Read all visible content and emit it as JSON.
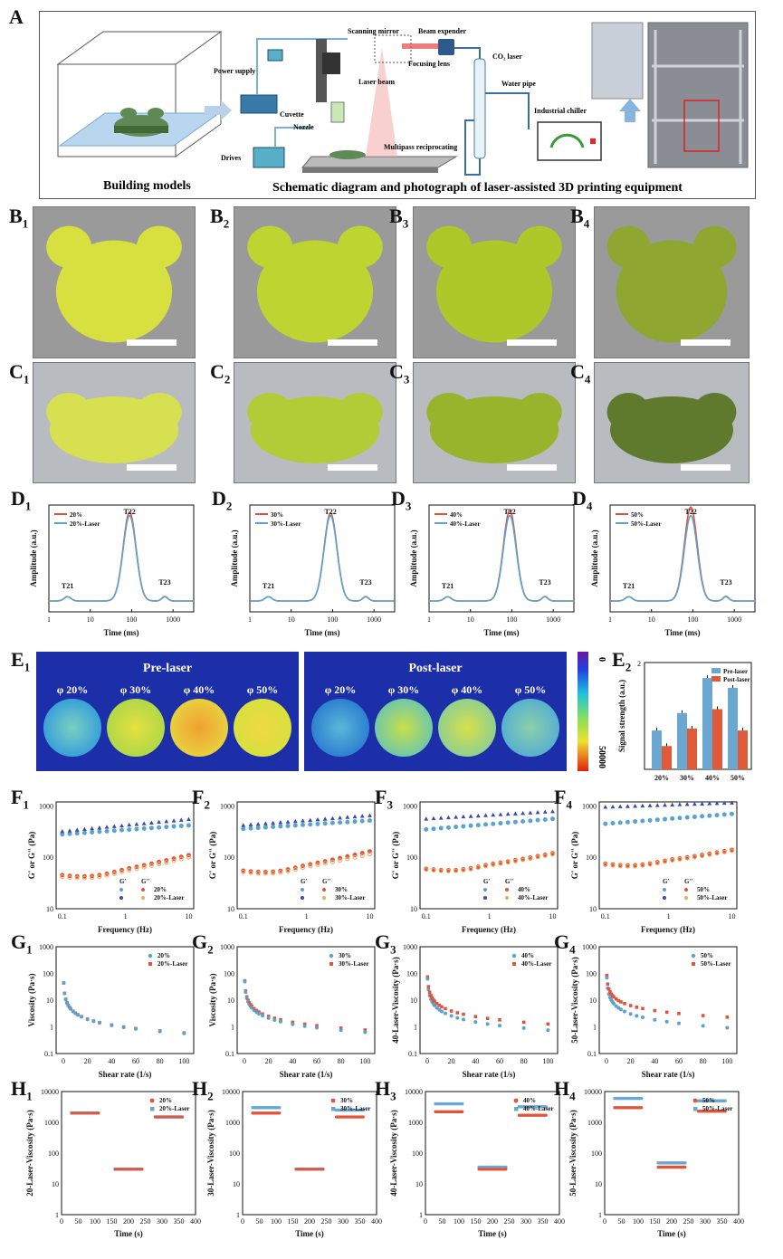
{
  "labels": {
    "A": "A",
    "B": "B",
    "C": "C",
    "D": "D",
    "E": "E",
    "F": "F",
    "G": "G",
    "H": "H",
    "s1": "1",
    "s2": "2",
    "s3": "3",
    "s4": "4"
  },
  "panelA": {
    "building_models": "Building models",
    "schematic_caption": "Schematic diagram and photograph of laser-assisted 3D printing equipment",
    "power_supply": "Power supply",
    "drives": "Drives",
    "scanning_mirror": "Scanning mirror",
    "beam_expender": "Beam expender",
    "co2_laser": "CO₂ laser",
    "focusing_lens": "Focusing lens",
    "laser_beam": "Laser beam",
    "cuvette": "Cuvette",
    "nozzle": "Nozzle",
    "multipass": "Multipass reciprocating",
    "water_pipe": "Water pipe",
    "industrial_chiller": "Industrial chiller"
  },
  "panelD": {
    "ylabel": "Amplitude (a.u.)",
    "xlabel": "Time (ms)",
    "xticks": [
      "1",
      "10",
      "100",
      "1000"
    ],
    "peaks": [
      "T21",
      "T22",
      "T23"
    ],
    "colors": {
      "base": "#e0553a",
      "laser": "#5aa3d0"
    },
    "legends": [
      [
        "20%",
        "20%-Laser"
      ],
      [
        "30%",
        "30%-Laser"
      ],
      [
        "40%",
        "40%-Laser"
      ],
      [
        "50%",
        "50%-Laser"
      ]
    ]
  },
  "panelE1": {
    "pre": "Pre-laser",
    "post": "Post-laser",
    "phis": [
      "φ 20%",
      "φ 30%",
      "φ 40%",
      "φ 50%"
    ],
    "colorbar_min": "0",
    "colorbar_max": "50000"
  },
  "panelF": {
    "ylabel": "G' or G'' (Pa)",
    "xlabel": "Frequency (Hz)",
    "xticks": [
      "0.1",
      "1",
      "10"
    ],
    "yticks": [
      "10",
      "100",
      "1000"
    ],
    "gp": "G'",
    "gpp": "G''",
    "legends": [
      [
        "20%",
        "20%-Laser"
      ],
      [
        "30%",
        "30%-Laser"
      ],
      [
        "40%",
        "40%-Laser"
      ],
      [
        "50%",
        "50%-Laser"
      ]
    ]
  },
  "panelG": {
    "ylabels": [
      "Viscosity (Pa·s)",
      "Viscosity (Pa·s)",
      "40-Laser-Viscosity (Pa·s)",
      "50-Laser-Viscosity (Pa·s)"
    ],
    "xlabel": "Shear rate (1/s)",
    "xticks": [
      "0",
      "20",
      "40",
      "60",
      "80",
      "100"
    ],
    "yticks": [
      "0.1",
      "1",
      "10",
      "100",
      "1000"
    ],
    "legends": [
      [
        "20%",
        "20%-Laser"
      ],
      [
        "30%",
        "30%-Laser"
      ],
      [
        "40%",
        "40%-Laser"
      ],
      [
        "50%",
        "50%-Laser"
      ]
    ]
  },
  "panelH": {
    "ylabels": [
      "20-Laser-Viscosity (Pa·s)",
      "30-Laser-Viscosity (Pa·s)",
      "40-Laser-Viscosity (Pa·s)",
      "50-Laser-Viscosity (Pa·s)"
    ],
    "xlabel": "Time (s)",
    "xticks": [
      "0",
      "50",
      "100",
      "150",
      "200",
      "250",
      "300",
      "350",
      "400"
    ],
    "yticks": [
      "1",
      "10",
      "100",
      "1000",
      "10000"
    ],
    "legends": [
      [
        "20%",
        "20%-Laser"
      ],
      [
        "30%",
        "30%-Laser"
      ],
      [
        "40%",
        "40%-Laser"
      ],
      [
        "50%",
        "50%-Laser"
      ]
    ]
  },
  "chart_data": [
    {
      "type": "bar",
      "id": "E2",
      "categories": [
        "20%",
        "30%",
        "40%",
        "50%"
      ],
      "series": [
        {
          "name": "Pre-laser",
          "color": "#6aa8d1",
          "values": [
            1.3,
            1.48,
            1.84,
            1.74
          ]
        },
        {
          "name": "Post-laser",
          "color": "#e05a3a",
          "values": [
            1.14,
            1.32,
            1.52,
            1.3
          ]
        }
      ],
      "ylabel": "Signal strength (a.u.)",
      "yticks": [
        "2"
      ],
      "ylim": [
        0,
        2
      ]
    },
    {
      "type": "line",
      "id": "F",
      "xscale": "log",
      "yscale": "log",
      "xlim": [
        0.08,
        12
      ],
      "ylim": [
        10,
        1200
      ],
      "panels": [
        {
          "gp": [
            280,
            420
          ],
          "gp_laser": [
            320,
            550
          ],
          "gpp": [
            45,
            110
          ],
          "gpp_laser": [
            42,
            100
          ],
          "min_at": 0.3
        },
        {
          "gp": [
            360,
            520
          ],
          "gp_laser": [
            420,
            650
          ],
          "gpp": [
            55,
            130
          ],
          "gpp_laser": [
            52,
            115
          ],
          "min_at": 0.4
        },
        {
          "gp": [
            350,
            560
          ],
          "gp_laser": [
            560,
            780
          ],
          "gpp": [
            60,
            120
          ],
          "gpp_laser": [
            58,
            115
          ],
          "min_at": 0.4
        },
        {
          "gp": [
            450,
            700
          ],
          "gp_laser": [
            950,
            1150
          ],
          "gpp": [
            75,
            140
          ],
          "gpp_laser": [
            72,
            135
          ],
          "min_at": 0.4
        }
      ]
    },
    {
      "type": "scatter",
      "id": "G",
      "x": [
        0.3,
        1,
        2,
        3,
        4,
        5,
        6,
        8,
        10,
        12,
        15,
        20,
        25,
        30,
        40,
        50,
        60,
        80,
        100
      ],
      "panels": [
        {
          "a": 18,
          "b": 0.75,
          "laser_a": 18,
          "laser_b": 0.74
        },
        {
          "a": 20,
          "b": 0.75,
          "laser_a": 22,
          "laser_b": 0.73
        },
        {
          "a": 25,
          "b": 0.76,
          "laser_a": 32,
          "laser_b": 0.7
        },
        {
          "a": 28,
          "b": 0.74,
          "laser_a": 40,
          "laser_b": 0.62
        }
      ],
      "ylim": [
        0.1,
        1000
      ]
    },
    {
      "type": "scatter",
      "id": "H",
      "segments": [
        [
          30,
          110
        ],
        [
          160,
          240
        ],
        [
          280,
          360
        ]
      ],
      "panels": [
        {
          "base": [
            2000,
            30,
            1500
          ],
          "laser": [
            2000,
            30,
            1500
          ]
        },
        {
          "base": [
            2000,
            30,
            1500
          ],
          "laser": [
            3000,
            30,
            2500
          ]
        },
        {
          "base": [
            2200,
            30,
            1700
          ],
          "laser": [
            4000,
            35,
            3200
          ]
        },
        {
          "base": [
            3000,
            35,
            2300
          ],
          "laser": [
            6000,
            48,
            5000
          ]
        }
      ],
      "xlim": [
        0,
        400
      ],
      "ylim": [
        1,
        10000
      ]
    }
  ]
}
